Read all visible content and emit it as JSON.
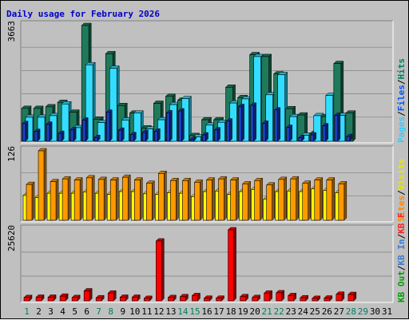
{
  "chart_data": {
    "type": "bar",
    "title": "Daily usage for February 2026",
    "days": [
      "1",
      "2",
      "3",
      "4",
      "5",
      "6",
      "7",
      "8",
      "9",
      "10",
      "11",
      "12",
      "13",
      "14",
      "15",
      "16",
      "17",
      "18",
      "19",
      "20",
      "21",
      "22",
      "23",
      "24",
      "25",
      "26",
      "27",
      "28",
      "29",
      "30",
      "31"
    ],
    "weekend_days": [
      "1",
      "7",
      "8",
      "14",
      "15",
      "21",
      "22",
      "28",
      "29"
    ],
    "panels": [
      {
        "id": "hits-files-pages",
        "max_label": "3663",
        "ymax": 3663,
        "series": [
          {
            "name": "Hits",
            "color": "#1f7a5c",
            "values": [
              1040,
              1040,
              1090,
              1230,
              920,
              3663,
              700,
              2770,
              1130,
              890,
              420,
              1200,
              1420,
              1300,
              180,
              680,
              680,
              1710,
              1380,
              2740,
              2680,
              2130,
              1030,
              830,
              240,
              780,
              2460,
              890,
              0,
              0,
              0
            ]
          },
          {
            "name": "Files",
            "color": "#33ddff",
            "values": [
              760,
              760,
              810,
              1180,
              430,
              2420,
              590,
              2310,
              670,
              890,
              390,
              680,
              1160,
              1350,
              140,
              510,
              600,
              1210,
              1340,
              2680,
              1470,
              2110,
              780,
              190,
              810,
              1450,
              820,
              0,
              0,
              0,
              0
            ]
          },
          {
            "name": "Pages",
            "color": "#1a3fbf",
            "values": [
              560,
              310,
              540,
              250,
              370,
              670,
              120,
              920,
              350,
              210,
              280,
              320,
              900,
              960,
              60,
              200,
              360,
              640,
              1100,
              1140,
              570,
              990,
              440,
              110,
              200,
              490,
              820,
              150,
              0,
              0,
              0
            ]
          }
        ]
      },
      {
        "id": "visits-sites",
        "max_label": "126",
        "ymax": 126,
        "series": [
          {
            "name": "Visits",
            "color": "#ffff00",
            "values": [
              45,
              41,
              49,
              49,
              49,
              51,
              49,
              47,
              52,
              52,
              48,
              47,
              50,
              49,
              43,
              52,
              53,
              47,
              52,
              56,
              38,
              52,
              53,
              52,
              57,
              54,
              50,
              0,
              0,
              0,
              0
            ]
          },
          {
            "name": "Sites",
            "color": "#ff9900",
            "values": [
              65,
              126,
              70,
              75,
              73,
              77,
              74,
              73,
              78,
              73,
              67,
              85,
              72,
              72,
              69,
              73,
              75,
              73,
              66,
              72,
              64,
              74,
              75,
              67,
              73,
              73,
              66,
              0,
              0,
              0,
              0
            ]
          }
        ]
      },
      {
        "id": "kbf-kbin-kbout",
        "max_label": "25620",
        "ymax": 25620,
        "series": [
          {
            "name": "KB F",
            "color": "#ff0000",
            "values": [
              1200,
              1300,
              1300,
              1700,
              1200,
              3600,
              1100,
              2800,
              1300,
              1300,
              900,
              21600,
              1200,
              1500,
              1900,
              950,
              950,
              25620,
              1500,
              1200,
              2800,
              2900,
              1900,
              1100,
              900,
              1000,
              2400,
              2300,
              0,
              0,
              0
            ]
          }
        ]
      }
    ],
    "legend": [
      {
        "panel": "hits-files-pages",
        "items": [
          {
            "label": "Pages",
            "color": "#33ccff"
          },
          {
            "label": "Files",
            "color": "#0055ff"
          },
          {
            "label": "Hits",
            "color": "#00805f"
          }
        ]
      },
      {
        "panel": "visits-sites",
        "items": [
          {
            "label": "Sites",
            "color": "#ff8800"
          },
          {
            "label": "Visits",
            "color": "#e8e800"
          }
        ]
      },
      {
        "panel": "kbf-kbin-kbout",
        "items": [
          {
            "label": "KB Out",
            "color": "#00a000"
          },
          {
            "label": "KB In",
            "color": "#3b7bd0"
          },
          {
            "label": "KB F",
            "color": "#ff2020"
          }
        ]
      }
    ],
    "separator": "/",
    "colors": {
      "background": "#c0c0c0",
      "plot": "#c0c0c0",
      "title": "#0000cc",
      "weekday": "#000000",
      "weekend": "#00805f"
    },
    "grid": true,
    "xlabel": "",
    "ylabel": ""
  }
}
